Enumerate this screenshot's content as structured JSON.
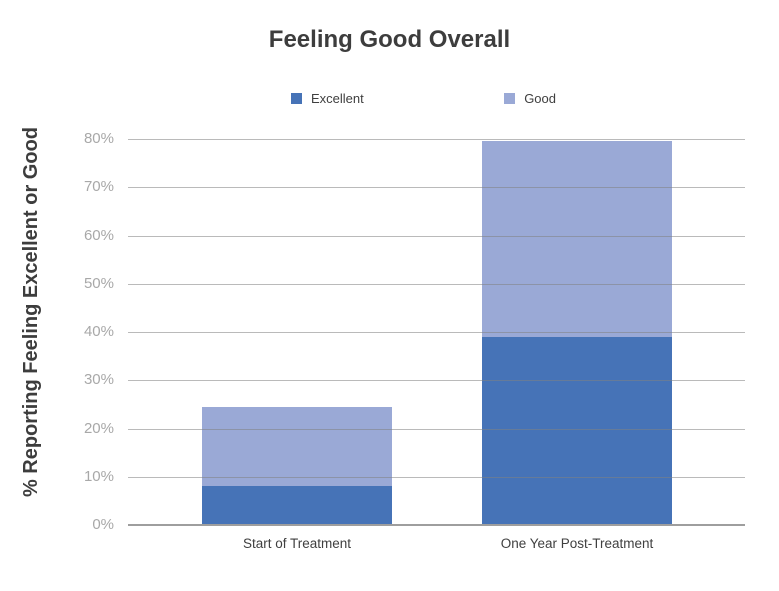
{
  "title": "Feeling Good Overall",
  "chart_data": {
    "type": "bar",
    "stacked": true,
    "title": "Feeling Good Overall",
    "ylabel": "% Reporting Feeling Excellent or Good",
    "xlabel": "",
    "categories": [
      "Start of Treatment",
      "One Year Post-Treatment"
    ],
    "series": [
      {
        "name": "Excellent",
        "color": "#4673b7",
        "values": [
          8,
          39
        ]
      },
      {
        "name": "Good",
        "color": "#9aa9d6",
        "values": [
          16.5,
          40.5
        ]
      }
    ],
    "stack_totals": [
      24.5,
      79.5
    ],
    "ylim": [
      0,
      80
    ],
    "ytick_step": 10,
    "ytick_format": "percent",
    "grid": true,
    "legend_position": "top"
  },
  "colors": {
    "excellent": "#4673b7",
    "good": "#9aa9d6",
    "gridline": "#b5b5b5",
    "axis_line": "#9e9e9e",
    "tick_text": "#a8a8a8",
    "label_text": "#3f3f3f",
    "title_text": "#3d3d3d",
    "background": "#ffffff"
  }
}
